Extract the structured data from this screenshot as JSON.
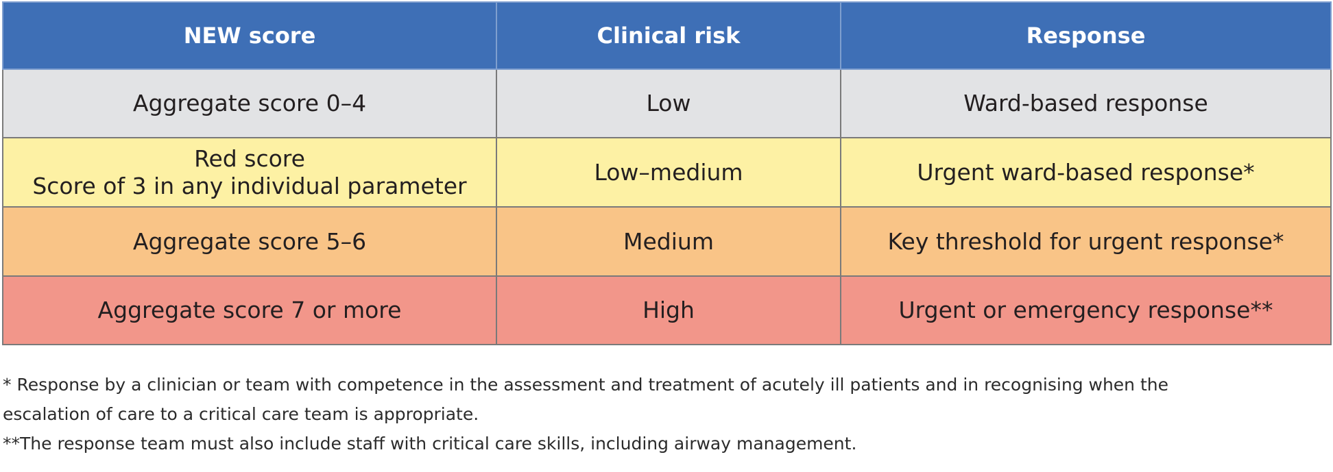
{
  "table": {
    "headers": [
      "NEW score",
      "Clinical risk",
      "Response"
    ],
    "rows": [
      {
        "score_lines": [
          "Aggregate score 0–4"
        ],
        "risk": "Low",
        "response": "Ward-based response",
        "color": "#e2e3e5"
      },
      {
        "score_lines": [
          "Red score",
          "Score of 3 in any individual parameter"
        ],
        "risk": "Low–medium",
        "response": "Urgent ward-based response*",
        "color": "#fdf1a4"
      },
      {
        "score_lines": [
          "Aggregate score 5–6"
        ],
        "risk": "Medium",
        "response": "Key threshold for urgent response*",
        "color": "#f9c487"
      },
      {
        "score_lines": [
          "Aggregate score 7 or more"
        ],
        "risk": "High",
        "response": "Urgent or emergency response**",
        "color": "#f2968a"
      }
    ],
    "header_color": "#3e6fb6"
  },
  "footnotes": {
    "single_asterisk_line1": "* Response by a clinician or team with competence in the assessment and treatment of acutely ill patients and in recognising when the",
    "single_asterisk_line2": "escalation of care to a critical care team is appropriate.",
    "double_asterisk": "**The response team must also include staff with critical care skills, including airway management."
  }
}
